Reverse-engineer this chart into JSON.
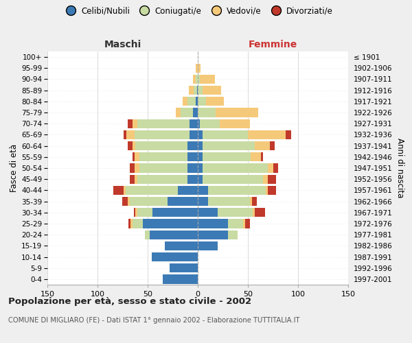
{
  "age_groups": [
    "0-4",
    "5-9",
    "10-14",
    "15-19",
    "20-24",
    "25-29",
    "30-34",
    "35-39",
    "40-44",
    "45-49",
    "50-54",
    "55-59",
    "60-64",
    "65-69",
    "70-74",
    "75-79",
    "80-84",
    "85-89",
    "90-94",
    "95-99",
    "100+"
  ],
  "birth_years": [
    "1997-2001",
    "1992-1996",
    "1987-1991",
    "1982-1986",
    "1977-1981",
    "1972-1976",
    "1967-1971",
    "1962-1966",
    "1957-1961",
    "1952-1956",
    "1947-1951",
    "1942-1946",
    "1937-1941",
    "1932-1936",
    "1927-1931",
    "1922-1926",
    "1917-1921",
    "1912-1916",
    "1907-1911",
    "1902-1906",
    "≤ 1901"
  ],
  "maschi_celibi": [
    35,
    28,
    46,
    33,
    48,
    55,
    45,
    30,
    20,
    10,
    10,
    10,
    10,
    8,
    8,
    5,
    2,
    1,
    0,
    0,
    0
  ],
  "maschi_coniugati": [
    0,
    0,
    0,
    0,
    5,
    10,
    15,
    38,
    52,
    50,
    48,
    48,
    52,
    55,
    52,
    12,
    8,
    3,
    2,
    0,
    0
  ],
  "maschi_vedovi": [
    0,
    0,
    0,
    0,
    0,
    2,
    2,
    2,
    2,
    3,
    5,
    5,
    3,
    8,
    5,
    5,
    5,
    5,
    3,
    2,
    0
  ],
  "maschi_divorziati": [
    0,
    0,
    0,
    0,
    0,
    2,
    2,
    5,
    10,
    5,
    5,
    2,
    5,
    3,
    5,
    0,
    0,
    0,
    0,
    0,
    0
  ],
  "femmine_nubili": [
    0,
    0,
    0,
    20,
    30,
    30,
    20,
    10,
    10,
    5,
    5,
    5,
    5,
    5,
    2,
    0,
    0,
    0,
    0,
    0,
    0
  ],
  "femmine_coniugate": [
    0,
    0,
    0,
    0,
    10,
    15,
    35,
    42,
    58,
    60,
    65,
    48,
    52,
    45,
    20,
    18,
    8,
    5,
    2,
    0,
    0
  ],
  "femmine_vedove": [
    0,
    0,
    0,
    0,
    0,
    2,
    2,
    2,
    2,
    5,
    5,
    10,
    15,
    38,
    30,
    42,
    18,
    18,
    15,
    3,
    0
  ],
  "femmine_divorziate": [
    0,
    0,
    0,
    0,
    0,
    5,
    10,
    5,
    8,
    8,
    5,
    2,
    5,
    5,
    0,
    0,
    0,
    0,
    0,
    0,
    0
  ],
  "color_celibi": "#3c7ab5",
  "color_coniugati": "#c8dba3",
  "color_vedovi": "#f5c97a",
  "color_divorziati": "#c0392b",
  "bg_color": "#efefef",
  "plot_bg": "#ffffff",
  "xlim": 150,
  "title": "Popolazione per età, sesso e stato civile - 2002",
  "subtitle": "COMUNE DI MIGLIARO (FE) - Dati ISTAT 1° gennaio 2002 - Elaborazione TUTTITALIA.IT",
  "label_maschi": "Maschi",
  "label_femmine": "Femmine",
  "ylabel_left": "Fasce di età",
  "ylabel_right": "Anni di nascita",
  "legend_labels": [
    "Celibi/Nubili",
    "Coniugati/e",
    "Vedovi/e",
    "Divorziati/e"
  ]
}
